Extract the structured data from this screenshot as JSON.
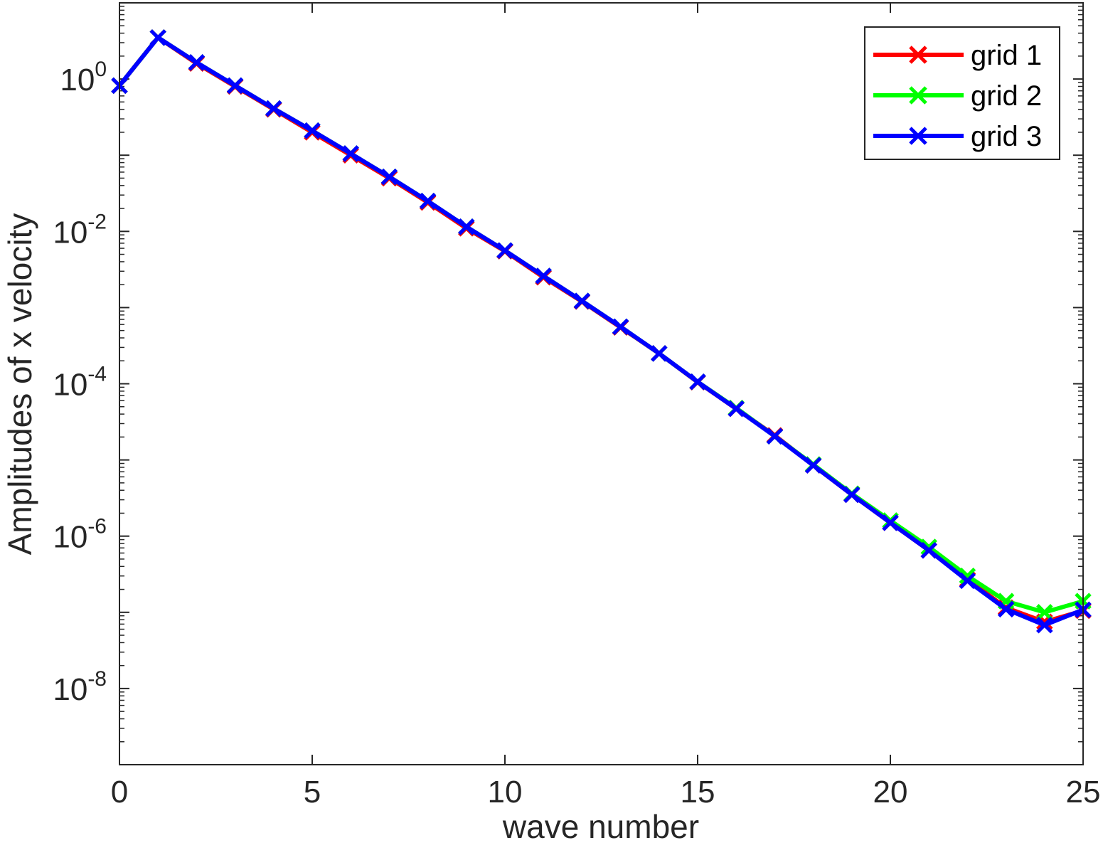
{
  "chart_data": {
    "type": "line",
    "title": "",
    "xlabel": "wave number",
    "ylabel": "Amplitudes of x velocity",
    "xlim": [
      0,
      25
    ],
    "ylim_log10": [
      -9,
      1
    ],
    "y_scale": "log",
    "x_ticks": [
      "0",
      "5",
      "10",
      "15",
      "20",
      "25"
    ],
    "y_ticks": [
      {
        "base": "10",
        "exp": "0",
        "value": 1
      },
      {
        "base": "10",
        "exp": "-2",
        "value": 0.01
      },
      {
        "base": "10",
        "exp": "-4",
        "value": 0.0001
      },
      {
        "base": "10",
        "exp": "-6",
        "value": 1e-06
      },
      {
        "base": "10",
        "exp": "-8",
        "value": 1e-08
      }
    ],
    "grid": false,
    "legend_position": "top-right",
    "x": [
      0,
      1,
      2,
      3,
      4,
      5,
      6,
      7,
      8,
      9,
      10,
      11,
      12,
      13,
      14,
      15,
      16,
      17,
      18,
      19,
      20,
      21,
      22,
      23,
      24,
      25
    ],
    "series": [
      {
        "name": "grid 1",
        "color": "#ff0000",
        "marker": "x",
        "values": [
          0.82,
          3.5,
          1.6,
          0.8,
          0.4,
          0.2,
          0.1,
          0.05,
          0.024,
          0.011,
          0.0055,
          0.0025,
          0.0012,
          0.00055,
          0.00025,
          0.000105,
          4.7e-05,
          2.1e-05,
          8.5e-06,
          3.5e-06,
          1.5e-06,
          6.5e-07,
          2.7e-07,
          1.15e-07,
          7.5e-08,
          1.05e-07
        ]
      },
      {
        "name": "grid 2",
        "color": "#00ff00",
        "marker": "x",
        "values": [
          0.82,
          3.5,
          1.65,
          0.82,
          0.41,
          0.21,
          0.105,
          0.052,
          0.025,
          0.0115,
          0.0056,
          0.0026,
          0.00122,
          0.00056,
          0.00025,
          0.000106,
          4.8e-05,
          2.05e-05,
          8.7e-06,
          3.6e-06,
          1.6e-06,
          7.2e-07,
          3e-07,
          1.4e-07,
          1e-07,
          1.4e-07
        ]
      },
      {
        "name": "grid 3",
        "color": "#0000ff",
        "marker": "x",
        "values": [
          0.82,
          3.5,
          1.65,
          0.82,
          0.41,
          0.21,
          0.105,
          0.052,
          0.025,
          0.0115,
          0.0056,
          0.0026,
          0.00122,
          0.00056,
          0.00025,
          0.000106,
          4.7e-05,
          2.05e-05,
          8.5e-06,
          3.5e-06,
          1.5e-06,
          6.5e-07,
          2.6e-07,
          1.1e-07,
          6.8e-08,
          1.08e-07
        ]
      }
    ]
  }
}
